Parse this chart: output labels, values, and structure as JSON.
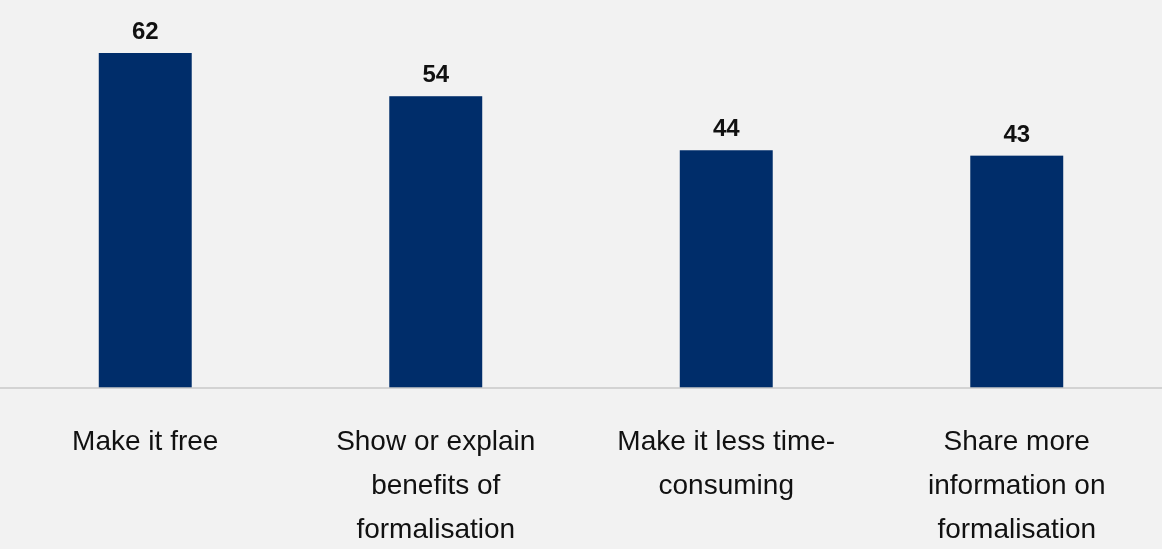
{
  "chart_data": {
    "type": "bar",
    "categories": [
      "Make it free",
      "Show or explain benefits of formalisation",
      "Make it less time-consuming",
      "Share more information on formalisation"
    ],
    "values": [
      62,
      54,
      44,
      43
    ],
    "color": "#002d6a",
    "data_labels": true
  }
}
